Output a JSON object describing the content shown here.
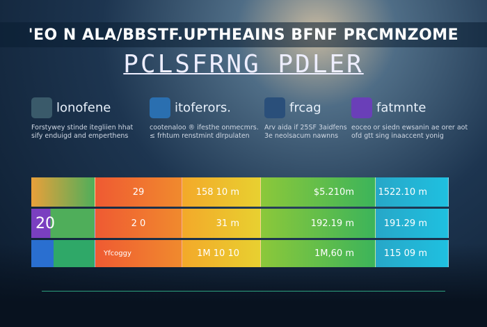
{
  "header": {
    "title": "'EO N ALA/BBSTF.UPTHEAINS BFNF PRCMNZOME",
    "subtitle": "PCLSFRNG PDLER"
  },
  "brands": [
    {
      "name": "lonofene",
      "description": [
        "Forstywey stinde itegliien hhat",
        "sify enduigd and emperthens"
      ]
    },
    {
      "name": "itoferors.",
      "description": [
        "cootenaloo ® ifesthe onmecmrs.",
        "≤ frhtum renstmint dlrpulaten"
      ]
    },
    {
      "name": "frcag",
      "description": [
        "Arv aida if 25SF 3aidfens",
        "3e neolsacum nawnns"
      ]
    },
    {
      "name": "fatmnte",
      "description": [
        "eoceo or siedn ewsanin ae orer aot",
        "ofd gtt sing inaaccent yonig"
      ]
    }
  ],
  "table": {
    "rows": [
      [
        null,
        "29",
        "158 10 m",
        "$5.210m",
        "1522.10 m"
      ],
      [
        "20",
        "2 0",
        "31 m",
        "192.19 m",
        "191.29 m"
      ],
      [
        null,
        "Yfcoggy",
        "1M 10 10",
        "1M,60 m",
        "115 09 m"
      ]
    ]
  }
}
